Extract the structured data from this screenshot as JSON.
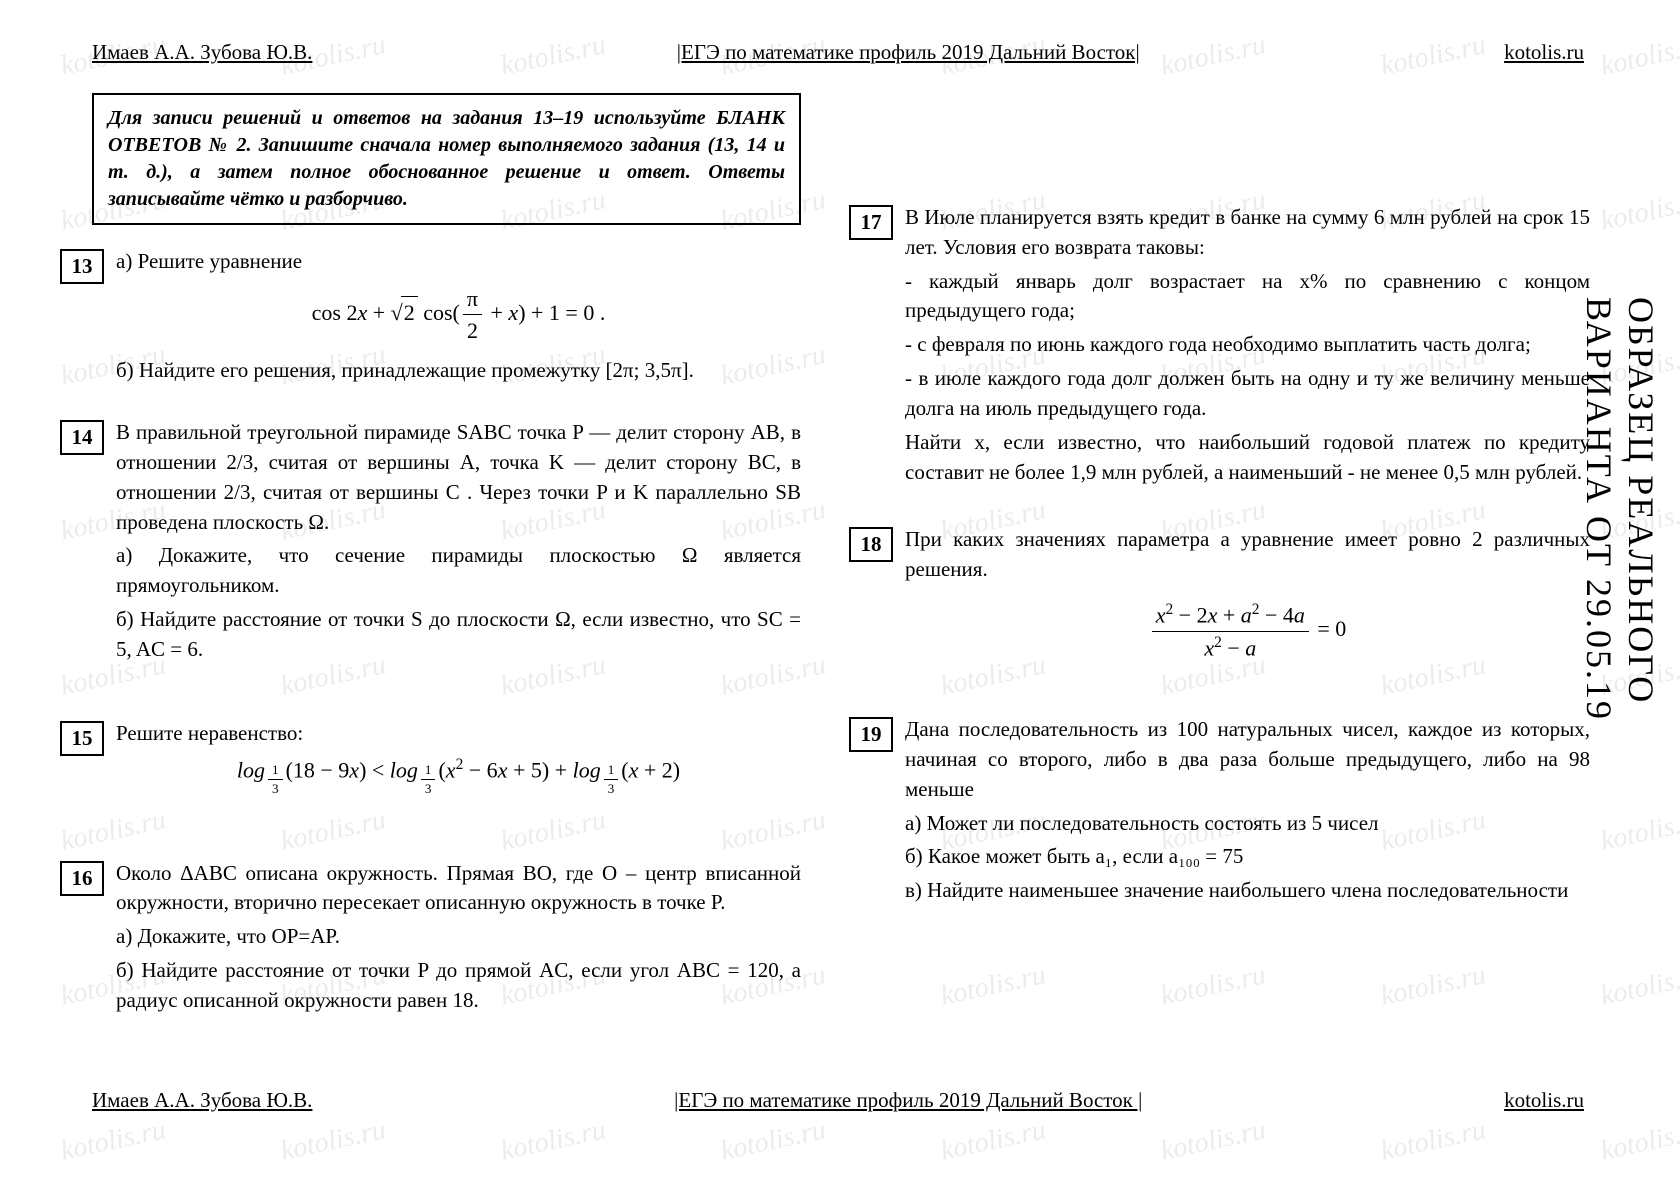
{
  "header": {
    "left": "Имаев А.А. Зубова Ю.В.",
    "center": "|ЕГЭ по математике профиль 2019 Дальний Восток|",
    "right": "kotolis.ru"
  },
  "footer": {
    "left": "Имаев А.А. Зубова Ю.В.",
    "center": "|ЕГЭ по математике профиль 2019 Дальний Восток |",
    "right": "kotolis.ru"
  },
  "watermark_text": "kotolis.ru",
  "side_label": "ОБРАЗЕЦ РЕАЛЬНОГО ВАРИАНТА ОТ 29.05.19",
  "instructions": "Для записи решений и ответов на задания 13–19 используйте БЛАНК ОТВЕТОВ № 2. Запишите сначала номер выполняемого задания (13, 14 и т. д.), а затем полное обоснованное решение и ответ. Ответы записывайте чётко и разборчиво.",
  "t13": {
    "num": "13",
    "a": "а) Решите уравнение",
    "b": "б) Найдите его решения, принадлежащие промежутку [2π; 3,5π]."
  },
  "t14": {
    "num": "14",
    "p1": "В правильной треугольной пирамиде SABC точка P — делит сторону AB, в отношении 2/3, считая от вершины A, точка K — делит сторону BC, в отношении 2/3, считая от вершины C . Через точки P и K параллельно SB проведена плоскость Ω.",
    "p2": "а) Докажите, что сечение пирамиды плоскостью Ω является прямоугольником.",
    "p3": "б) Найдите расстояние от точки S до плоскости Ω, если известно, что SC = 5, AC = 6."
  },
  "t15": {
    "num": "15",
    "a": "Решите неравенство:"
  },
  "t16": {
    "num": "16",
    "p1": "Около ΔABC описана окружность. Прямая BO, где O – центр вписанной окружности, вторично пересекает описанную окружность в точке P.",
    "p2": "а) Докажите, что OP=AP.",
    "p3": "б) Найдите расстояние от точки P до прямой AC, если угол ABC = 120, а радиус описанной окружности равен 18."
  },
  "t17": {
    "num": "17",
    "p1": "В Июле планируется взять кредит в банке на сумму 6 млн рублей на срок 15 лет. Условия его возврата таковы:",
    "p2": "- каждый январь долг возрастает на x% по сравнению с концом предыдущего года;",
    "p3": "- с февраля по июнь каждого года необходимо выплатить часть долга;",
    "p4": "- в июле каждого года долг должен быть на одну и ту же величину меньше долга на июль предыдущего года.",
    "p5": "Найти x, если известно, что наибольший годовой платеж по кредиту составит не более 1,9 млн рублей, а наименьший - не менее 0,5 млн рублей."
  },
  "t18": {
    "num": "18",
    "p1": "При каких значениях параметра a уравнение имеет ровно 2 различных решения."
  },
  "t19": {
    "num": "19",
    "p1": "Дана последовательность из 100 натуральных чисел, каждое из которых, начиная со второго, либо в два раза больше предыдущего, либо на 98 меньше",
    "p2": "а) Может ли последовательность состоять из 5 чисел",
    "p3": "б) Какое может быть a₁, если a₁₀₀ = 75",
    "p4": "в) Найдите наименьшее значение наибольшего члена последовательности"
  }
}
